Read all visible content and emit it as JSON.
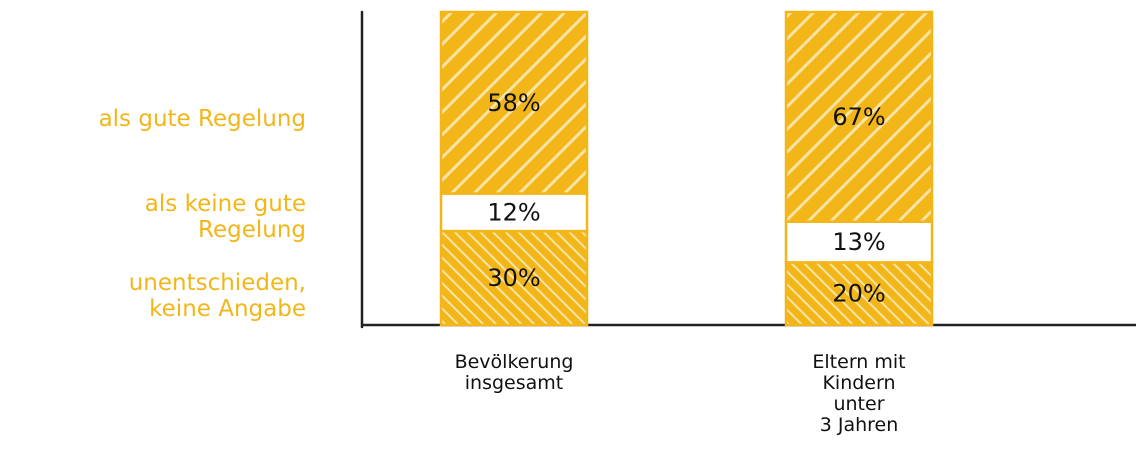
{
  "chart_data": {
    "type": "bar",
    "stacked": true,
    "normalized_percent": true,
    "categories": [
      "Bevölkerung\ninsgesamt",
      "Eltern mit\nKindern\nunter\n3 Jahren"
    ],
    "series": [
      {
        "name": "unentschieden,\nkeine Angabe",
        "values": [
          30,
          20
        ],
        "labels": [
          "30%",
          "20%"
        ],
        "fill": "hatch-dense"
      },
      {
        "name": "als keine gute\nRegelung",
        "values": [
          12,
          13
        ],
        "labels": [
          "12%",
          "13%"
        ],
        "fill": "white"
      },
      {
        "name": "als gute Regelung",
        "values": [
          58,
          67
        ],
        "labels": [
          "58%",
          "67%"
        ],
        "fill": "hatch-wide"
      }
    ],
    "ylim": [
      0,
      100
    ],
    "grid": false,
    "legend_position": "left",
    "colors": {
      "accent": "#f2b619",
      "hatch_line": "#ffffff",
      "outline": "#f2b619",
      "axis": "#222222",
      "text": "#111111"
    }
  }
}
